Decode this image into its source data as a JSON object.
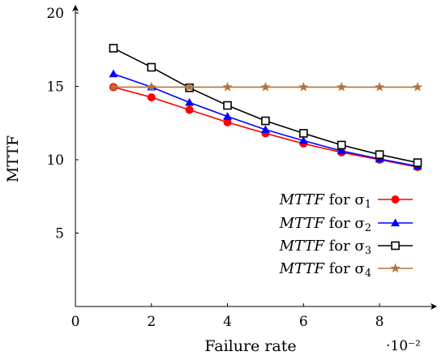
{
  "chart_data": {
    "type": "line",
    "xlabel": "Failure rate",
    "ylabel": "MTTF",
    "x_scale_note": "·10⁻²",
    "xlim": [
      0,
      9.3
    ],
    "ylim": [
      0,
      20
    ],
    "x_ticks": [
      "0",
      "2",
      "4",
      "6",
      "8"
    ],
    "x_tick_values": [
      0,
      2,
      4,
      6,
      8
    ],
    "y_ticks": [
      "5",
      "10",
      "15",
      "20"
    ],
    "y_tick_values": [
      5,
      10,
      15,
      20
    ],
    "grid": false,
    "legend_position": "center-right",
    "x": [
      1,
      2,
      3,
      4,
      5,
      6,
      7,
      8,
      9
    ],
    "series": [
      {
        "name": "MTTF for σ1",
        "name_main": "MTTF",
        "name_mid": " for σ",
        "name_sub": "1",
        "color": "#ff0000",
        "marker": "circle",
        "values": [
          14.95,
          14.25,
          13.4,
          12.55,
          11.8,
          11.1,
          10.5,
          10.0,
          9.5
        ]
      },
      {
        "name": "MTTF for σ2",
        "name_main": "MTTF",
        "name_mid": " for σ",
        "name_sub": "2",
        "color": "#0000ff",
        "marker": "triangle",
        "values": [
          15.85,
          14.95,
          13.9,
          12.95,
          12.05,
          11.3,
          10.6,
          10.05,
          9.55
        ]
      },
      {
        "name": "MTTF for σ3",
        "name_main": "MTTF",
        "name_mid": " for σ",
        "name_sub": "3",
        "color": "#000000",
        "marker": "square",
        "values": [
          17.6,
          16.3,
          14.9,
          13.7,
          12.65,
          11.8,
          11.0,
          10.35,
          9.8
        ]
      },
      {
        "name": "MTTF for σ4",
        "name_main": "MTTF",
        "name_mid": " for σ",
        "name_sub": "4",
        "color": "#b5733a",
        "marker": "star",
        "values": [
          14.95,
          14.95,
          14.95,
          14.95,
          14.95,
          14.95,
          14.95,
          14.95,
          14.95
        ]
      }
    ]
  }
}
